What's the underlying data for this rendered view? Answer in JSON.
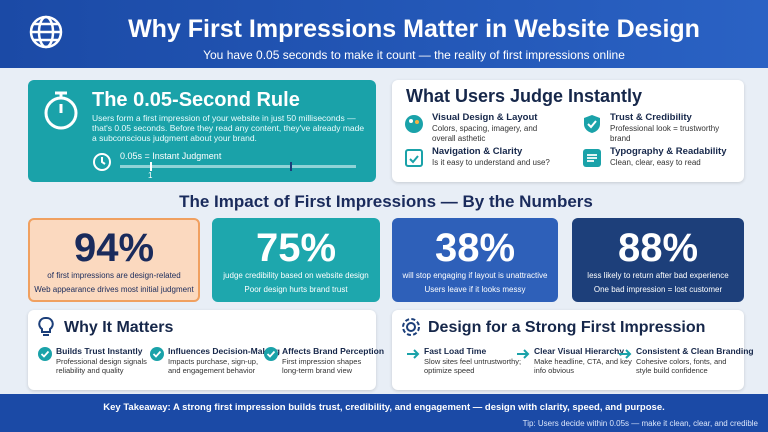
{
  "header": {
    "title": "Why First Impressions Matter in Website Design",
    "subtitle": "You have 0.05 seconds to make it count — the reality of first impressions online"
  },
  "rule_card": {
    "title": "The 0.05-Second Rule",
    "body": "Users form a first impression of your website in just 50 milliseconds — that's 0.05 seconds. Before they read any content, they've already made a subconscious judgment about your brand.",
    "timeline_label": "0.05s = Instant Judgment",
    "timeline_tick": "1"
  },
  "judge_card": {
    "title": "What Users Judge Instantly",
    "items": [
      {
        "title": "Visual Design & Layout",
        "text": "Colors, spacing, imagery, and overall asthetic"
      },
      {
        "title": "Trust & Credibility",
        "text": "Professional look = trustworthy brand"
      },
      {
        "title": "Navigation & Clarity",
        "text": "Is it easy to understand and use?"
      },
      {
        "title": "Typography & Readability",
        "text": "Clean, clear, easy to read"
      }
    ]
  },
  "numbers_heading": "The Impact of First Impressions — By the Numbers",
  "stats": [
    {
      "number": "94%",
      "text": "of first impressions are design-related",
      "note": "Web appearance drives most initial judgment"
    },
    {
      "number": "75%",
      "text": "judge credibility based on website design",
      "note": "Poor design hurts brand trust"
    },
    {
      "number": "38%",
      "text": "will stop engaging if layout is unattractive",
      "note": "Users leave if it looks messy"
    },
    {
      "number": "88%",
      "text": "less likely to return after bad experience",
      "note": "One bad impression = lost customer"
    }
  ],
  "why_card": {
    "title": "Why It Matters",
    "items": [
      {
        "title": "Builds Trust Instantly",
        "text": "Professional design signals reliability and quality"
      },
      {
        "title": "Influences Decision-Making",
        "text": "Impacts purchase, sign-up, and engagement behavior"
      },
      {
        "title": "Affects Brand Perception",
        "text": "First impression shapes long-term brand view"
      }
    ]
  },
  "design_card": {
    "title": "Design for a Strong First Impression",
    "items": [
      {
        "title": "Fast Load Time",
        "text": "Slow sites feel untrustworthy; optimize speed"
      },
      {
        "title": "Clear Visual Hierarchy",
        "text": "Make headline, CTA, and key info obvious"
      },
      {
        "title": "Consistent & Clean Branding",
        "text": "Cohesive colors, fonts, and style build confidence"
      }
    ]
  },
  "footer": {
    "takeaway": "Key Takeaway: A strong first impression builds trust, credibility, and engagement — design with clarity, speed, and purpose.",
    "tip": "Tip: Users decide within 0.05s — make it clean, clear, and credible"
  }
}
